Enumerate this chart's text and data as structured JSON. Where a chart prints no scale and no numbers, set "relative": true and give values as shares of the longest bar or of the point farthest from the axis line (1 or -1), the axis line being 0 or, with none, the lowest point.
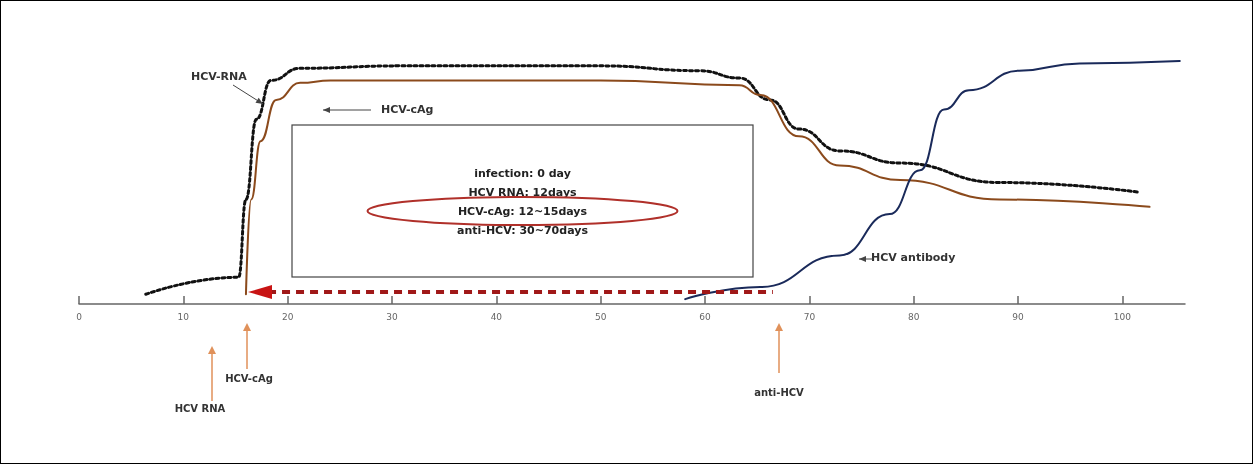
{
  "chart_data": {
    "type": "line",
    "relative": true,
    "marker": "none",
    "grid": false,
    "legend": false,
    "xlim": [
      0,
      106
    ],
    "xticks": [
      0,
      10,
      20,
      30,
      40,
      50,
      60,
      70,
      80,
      90,
      100
    ],
    "series": [
      {
        "name": "HCV-RNA",
        "color": "#111111",
        "line_style": "dotted",
        "x": [
          6.4,
          15.3,
          16,
          17,
          18.4,
          21.2,
          30.8,
          50,
          59.5,
          63.3,
          66.2,
          69,
          72.9,
          78.7,
          88.2,
          101.6
        ],
        "values": [
          0.04,
          0.11,
          0.43,
          0.76,
          0.92,
          0.97,
          0.98,
          0.98,
          0.96,
          0.93,
          0.84,
          0.72,
          0.63,
          0.58,
          0.5,
          0.46
        ]
      },
      {
        "name": "HCV-cAg",
        "color": "#8b4a1c",
        "line_style": "solid",
        "x": [
          16,
          16.5,
          17.4,
          18.9,
          21.2,
          24.1,
          50,
          63.3,
          65.3,
          69,
          72.9,
          78.7,
          88.2,
          102.6
        ],
        "values": [
          0.04,
          0.43,
          0.67,
          0.84,
          0.91,
          0.92,
          0.92,
          0.9,
          0.86,
          0.69,
          0.57,
          0.51,
          0.43,
          0.4
        ]
      },
      {
        "name": "HCV antibody",
        "color": "#1a2a5a",
        "line_style": "solid",
        "x": [
          58.1,
          65.3,
          72.9,
          77.7,
          80.6,
          82.9,
          85.3,
          90.1,
          95.9,
          105.5
        ],
        "values": [
          0.02,
          0.07,
          0.2,
          0.37,
          0.55,
          0.8,
          0.88,
          0.96,
          0.99,
          1.0
        ]
      }
    ],
    "annotations": [
      "infection: 0 day",
      "HCV RNA: 12days",
      "HCV-cAg: 12~15days",
      "anti-HCV: 30~70days",
      "HCV RNA",
      "HCV-cAg",
      "anti-HCV"
    ]
  }
}
